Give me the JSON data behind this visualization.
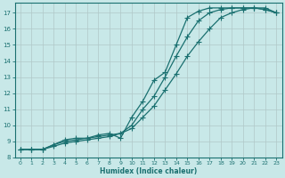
{
  "xlabel": "Humidex (Indice chaleur)",
  "background_color": "#c8e8e8",
  "grid_color": "#b0c8c8",
  "line_color": "#1a7070",
  "xlim": [
    -0.5,
    23.5
  ],
  "ylim": [
    8.0,
    17.6
  ],
  "xticks": [
    0,
    1,
    2,
    3,
    4,
    5,
    6,
    7,
    8,
    9,
    10,
    11,
    12,
    13,
    14,
    15,
    16,
    17,
    18,
    19,
    20,
    21,
    22,
    23
  ],
  "yticks": [
    8,
    9,
    10,
    11,
    12,
    13,
    14,
    15,
    16,
    17
  ],
  "curve1_x": [
    0,
    1,
    2,
    3,
    4,
    5,
    6,
    7,
    8,
    9,
    10,
    11,
    12,
    13,
    14,
    15,
    16,
    17,
    18,
    19,
    20,
    21,
    22,
    23
  ],
  "curve1_y": [
    8.5,
    8.5,
    8.5,
    8.8,
    9.1,
    9.2,
    9.2,
    9.4,
    9.5,
    9.2,
    10.5,
    11.5,
    12.8,
    13.3,
    15.0,
    16.7,
    17.1,
    17.3,
    17.3,
    17.3,
    17.3,
    17.3,
    17.3,
    17.0
  ],
  "curve2_x": [
    0,
    1,
    2,
    3,
    4,
    5,
    6,
    7,
    8,
    9,
    10,
    11,
    12,
    13,
    14,
    15,
    16,
    17,
    18,
    19,
    20,
    21,
    22,
    23
  ],
  "curve2_y": [
    8.5,
    8.5,
    8.5,
    8.8,
    9.0,
    9.1,
    9.2,
    9.3,
    9.4,
    9.5,
    10.0,
    11.0,
    11.8,
    13.0,
    14.3,
    15.5,
    16.5,
    17.0,
    17.2,
    17.3,
    17.3,
    17.3,
    17.2,
    17.0
  ],
  "curve3_x": [
    0,
    1,
    2,
    3,
    4,
    5,
    6,
    7,
    8,
    9,
    10,
    11,
    12,
    13,
    14,
    15,
    16,
    17,
    18,
    19,
    20,
    21,
    22,
    23
  ],
  "curve3_y": [
    8.5,
    8.5,
    8.5,
    8.7,
    8.9,
    9.0,
    9.1,
    9.2,
    9.3,
    9.5,
    9.8,
    10.5,
    11.2,
    12.2,
    13.2,
    14.3,
    15.2,
    16.0,
    16.7,
    17.0,
    17.2,
    17.3,
    17.2,
    17.0
  ],
  "xlabel_fontsize": 5.5,
  "tick_fontsize": 5.0,
  "marker_size": 2.2,
  "line_width": 0.9
}
